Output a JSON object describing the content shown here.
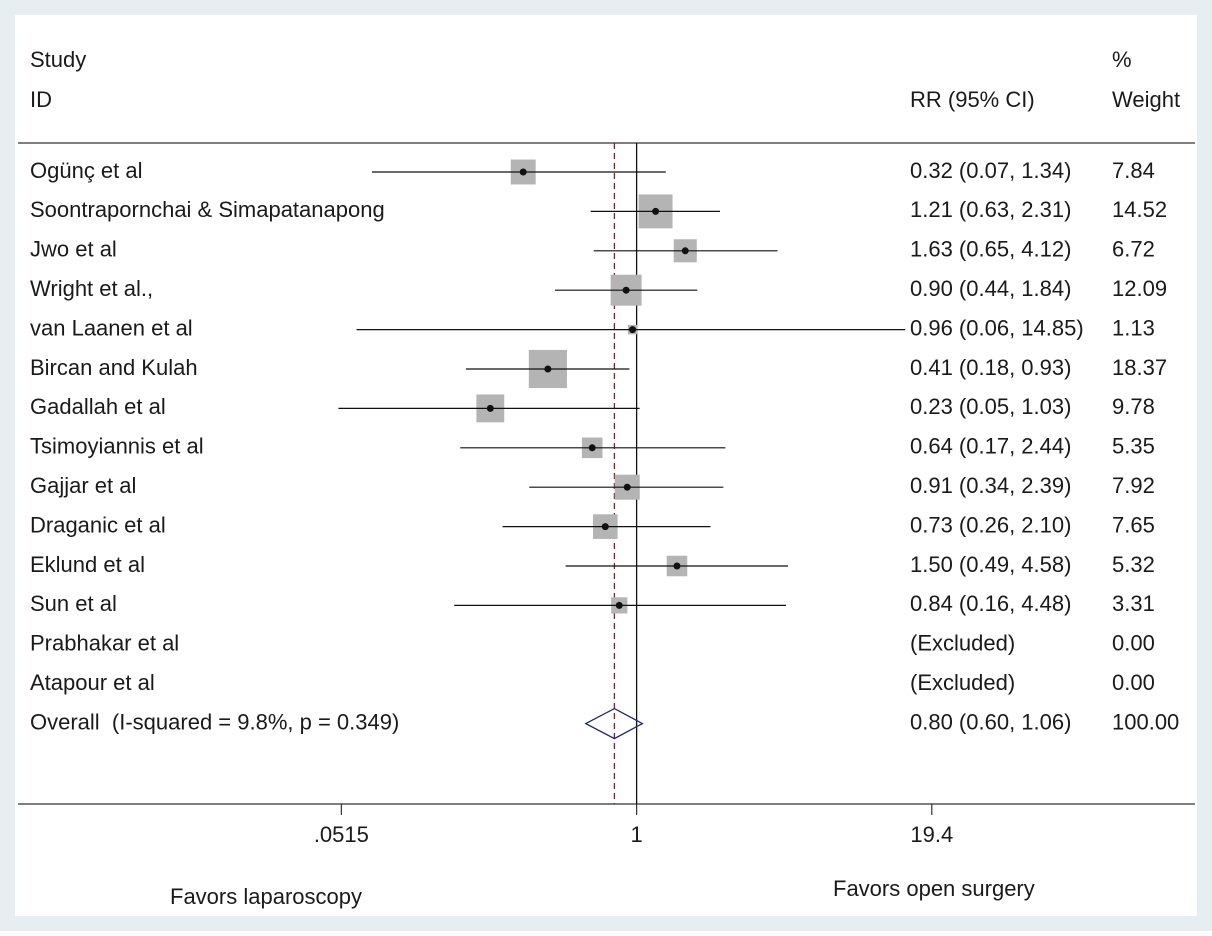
{
  "chart_data": {
    "type": "forest",
    "header": {
      "study": "Study",
      "id": "ID",
      "effect": "RR (95% CI)",
      "percent": "%",
      "weight": "Weight"
    },
    "studies": [
      "Ogünç et al",
      "Soontrapornchai & Simapatanapong",
      "Jwo et al",
      "Wright et al.,",
      "van Laanen et al",
      "Bircan and Kulah",
      "Gadallah et al",
      "Tsimoyiannis et al",
      "Gajjar et al",
      "Draganic et al",
      "Eklund et al",
      "Sun et al",
      "Prabhakar et al",
      "Atapour et al"
    ],
    "rr": [
      0.32,
      1.21,
      1.63,
      0.9,
      0.96,
      0.41,
      0.23,
      0.64,
      0.91,
      0.73,
      1.5,
      0.84,
      null,
      null
    ],
    "lower": [
      0.07,
      0.63,
      0.65,
      0.44,
      0.06,
      0.18,
      0.05,
      0.17,
      0.34,
      0.26,
      0.49,
      0.16,
      null,
      null
    ],
    "upper": [
      1.34,
      2.31,
      4.12,
      1.84,
      14.85,
      0.93,
      1.03,
      2.44,
      2.39,
      2.1,
      4.58,
      4.48,
      null,
      null
    ],
    "ci_labels": [
      "0.32 (0.07, 1.34)",
      "1.21 (0.63, 2.31)",
      "1.63 (0.65, 4.12)",
      "0.90 (0.44, 1.84)",
      "0.96 (0.06, 14.85)",
      "0.41 (0.18, 0.93)",
      "0.23 (0.05, 1.03)",
      "0.64 (0.17, 2.44)",
      "0.91 (0.34, 2.39)",
      "0.73 (0.26, 2.10)",
      "1.50 (0.49, 4.58)",
      "0.84 (0.16, 4.48)",
      "(Excluded)",
      "(Excluded)"
    ],
    "weights": [
      7.84,
      14.52,
      6.72,
      12.09,
      1.13,
      18.37,
      9.78,
      5.35,
      7.92,
      7.65,
      5.32,
      3.31,
      0,
      0
    ],
    "weight_labels": [
      "7.84",
      "14.52",
      "6.72",
      "12.09",
      "1.13",
      "18.37",
      "9.78",
      "5.35",
      "7.92",
      "7.65",
      "5.32",
      "3.31",
      "0.00",
      "0.00"
    ],
    "overall": {
      "name": "Overall  (I-squared = 9.8%, p = 0.349)",
      "rr": 0.8,
      "lower": 0.6,
      "upper": 1.06,
      "ci_label": "0.80 (0.60, 1.06)",
      "weight": 100,
      "weight_label": "100.00"
    },
    "log_scale": true,
    "null_value": 1,
    "xlim": [
      0.002,
      273
    ],
    "xticks": [
      {
        "value": 0.0515,
        "label": ".0515"
      },
      1,
      19.4
    ],
    "box_color": "#b4b4b4",
    "diamond_color": "#1f2a6b",
    "overall_line_color": "#8b1a2b",
    "favors_left": "Favors laparoscopy",
    "favors_right": "Favors open surgery"
  }
}
